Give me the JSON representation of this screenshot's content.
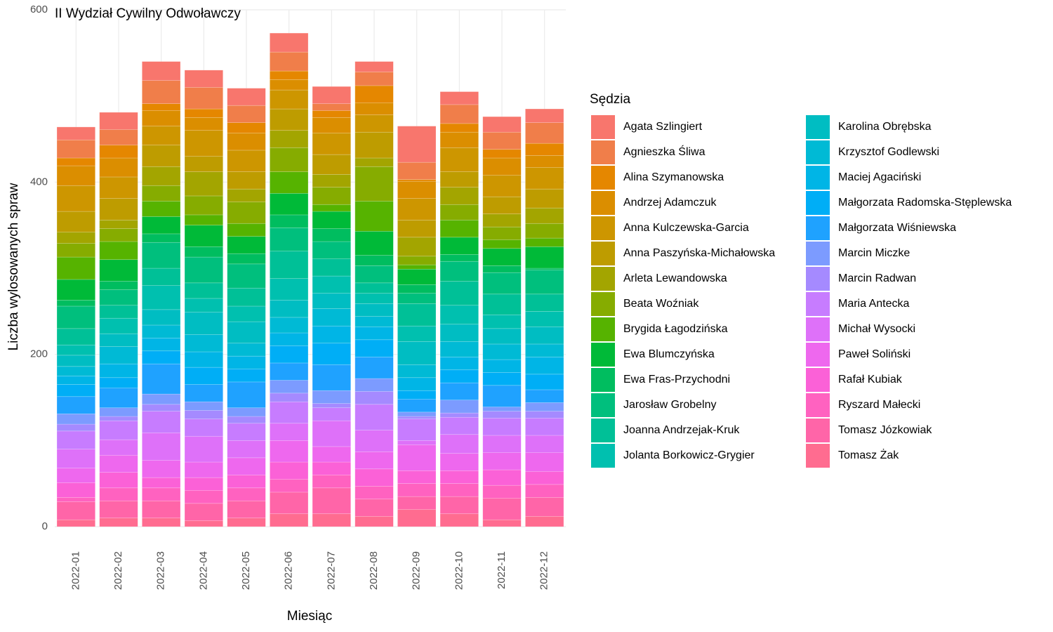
{
  "chart_data": {
    "type": "bar",
    "stacked": true,
    "title": "II Wydział Cywilny Odwoławczy",
    "x_label": "Miesiąc",
    "y_label": "Liczba wylosowanych spraw",
    "legend_title": "Sędzia",
    "categories": [
      "2022-01",
      "2022-02",
      "2022-03",
      "2022-04",
      "2022-05",
      "2022-06",
      "2022-07",
      "2022-08",
      "2022-09",
      "2022-10",
      "2022-11",
      "2022-12"
    ],
    "ylim": [
      0,
      600
    ],
    "yticks": [
      0,
      200,
      400,
      600
    ],
    "grid": true,
    "legend": "right",
    "series": [
      {
        "name": "Agata Szlingiert",
        "color": "#F8766D",
        "values": [
          15,
          20,
          22,
          20,
          20,
          22,
          20,
          12,
          42,
          15,
          18,
          16
        ]
      },
      {
        "name": "Agnieszka Śliwa",
        "color": "#F07E4A",
        "values": [
          21,
          18,
          27,
          25,
          20,
          22,
          8,
          16,
          20,
          22,
          20,
          24
        ]
      },
      {
        "name": "Alina Szymanowska",
        "color": "#E58700",
        "values": [
          9,
          15,
          8,
          10,
          12,
          10,
          8,
          20,
          2,
          10,
          10,
          14
        ]
      },
      {
        "name": "Andrzej Adamczuk",
        "color": "#DB8E00",
        "values": [
          23,
          22,
          18,
          15,
          20,
          12,
          18,
          14,
          20,
          18,
          20,
          14
        ]
      },
      {
        "name": "Anna Kulczewska-Garcia",
        "color": "#CD9600",
        "values": [
          30,
          25,
          22,
          30,
          25,
          22,
          25,
          20,
          25,
          28,
          25,
          25
        ]
      },
      {
        "name": "Anna Paszyńska-Michałowska",
        "color": "#BE9C00",
        "values": [
          24,
          25,
          25,
          18,
          20,
          25,
          23,
          30,
          20,
          18,
          20,
          22
        ]
      },
      {
        "name": "Arleta Lewandowska",
        "color": "#A3A500",
        "values": [
          13,
          10,
          22,
          28,
          15,
          20,
          15,
          10,
          22,
          20,
          15,
          18
        ]
      },
      {
        "name": "Beata Woźniak",
        "color": "#86AC00",
        "values": [
          16,
          15,
          18,
          22,
          25,
          28,
          20,
          40,
          10,
          18,
          15,
          17
        ]
      },
      {
        "name": "Brygida Łagodzińska",
        "color": "#56B300",
        "values": [
          26,
          21,
          18,
          12,
          15,
          25,
          8,
          35,
          5,
          20,
          10,
          10
        ]
      },
      {
        "name": "Ewa Blumczyńska",
        "color": "#00BA38",
        "values": [
          24,
          25,
          20,
          25,
          20,
          25,
          20,
          28,
          18,
          20,
          20,
          25
        ]
      },
      {
        "name": "Ewa Fras-Przychodni",
        "color": "#00BD5F",
        "values": [
          7,
          10,
          10,
          12,
          12,
          15,
          15,
          12,
          10,
          8,
          8,
          2
        ]
      },
      {
        "name": "Jarosław Grobelny",
        "color": "#00BF7D",
        "values": [
          26,
          18,
          30,
          30,
          28,
          27,
          20,
          20,
          12,
          23,
          25,
          28
        ]
      },
      {
        "name": "Joanna Andrzejak-Kruk",
        "color": "#00C097",
        "values": [
          19,
          15,
          20,
          18,
          21,
          32,
          20,
          12,
          26,
          28,
          24,
          20
        ]
      },
      {
        "name": "Jolanta Borkowicz-Grygier",
        "color": "#00C0AF",
        "values": [
          12,
          18,
          28,
          16,
          18,
          25,
          20,
          12,
          18,
          22,
          16,
          18
        ]
      },
      {
        "name": "Karolina Obrębska",
        "color": "#00BDC2",
        "values": [
          13,
          15,
          18,
          26,
          25,
          20,
          18,
          15,
          27,
          20,
          18,
          20
        ]
      },
      {
        "name": "Krzysztof Godlewski",
        "color": "#00BAD5",
        "values": [
          11,
          20,
          15,
          20,
          15,
          18,
          20,
          12,
          15,
          18,
          18,
          15
        ]
      },
      {
        "name": "Maciej Agaciński",
        "color": "#00B5E6",
        "values": [
          10,
          16,
          15,
          18,
          15,
          15,
          20,
          15,
          15,
          15,
          15,
          20
        ]
      },
      {
        "name": "Małgorzata Radomska-Stęplewska",
        "color": "#00AEF6",
        "values": [
          14,
          12,
          15,
          20,
          15,
          20,
          25,
          20,
          10,
          15,
          15,
          18
        ]
      },
      {
        "name": "Małgorzata Wiśniewska",
        "color": "#1FA2FF",
        "values": [
          20,
          23,
          35,
          20,
          30,
          20,
          30,
          25,
          15,
          20,
          25,
          15
        ]
      },
      {
        "name": "Marcin Miczke",
        "color": "#7C9BFF",
        "values": [
          12,
          10,
          12,
          10,
          10,
          15,
          15,
          15,
          5,
          15,
          5,
          10
        ]
      },
      {
        "name": "Marcin Radwan",
        "color": "#A58AFF",
        "values": [
          8,
          5,
          8,
          10,
          8,
          10,
          5,
          15,
          3,
          5,
          8,
          8
        ]
      },
      {
        "name": "Maria Antecka",
        "color": "#C77CFF",
        "values": [
          21,
          22,
          25,
          20,
          20,
          25,
          15,
          30,
          25,
          20,
          20,
          20
        ]
      },
      {
        "name": "Michał Wysocki",
        "color": "#DE71F9",
        "values": [
          22,
          18,
          32,
          30,
          20,
          20,
          30,
          25,
          5,
          22,
          20,
          20
        ]
      },
      {
        "name": "Paweł Soliński",
        "color": "#EE68EE",
        "values": [
          17,
          20,
          20,
          18,
          20,
          25,
          18,
          20,
          30,
          20,
          20,
          22
        ]
      },
      {
        "name": "Rafał Kubiak",
        "color": "#FB61D7",
        "values": [
          17,
          18,
          12,
          15,
          15,
          20,
          15,
          20,
          15,
          15,
          18,
          15
        ]
      },
      {
        "name": "Ryszard Małecki",
        "color": "#FF62C0",
        "values": [
          5,
          15,
          15,
          15,
          15,
          15,
          15,
          15,
          15,
          15,
          15,
          15
        ]
      },
      {
        "name": "Tomasz Józkowiak",
        "color": "#FF65A8",
        "values": [
          21,
          20,
          20,
          20,
          20,
          25,
          30,
          20,
          15,
          20,
          25,
          22
        ]
      },
      {
        "name": "Tomasz Żak",
        "color": "#FF6C90",
        "values": [
          8,
          10,
          10,
          7,
          10,
          15,
          15,
          12,
          20,
          15,
          8,
          12
        ]
      }
    ]
  }
}
